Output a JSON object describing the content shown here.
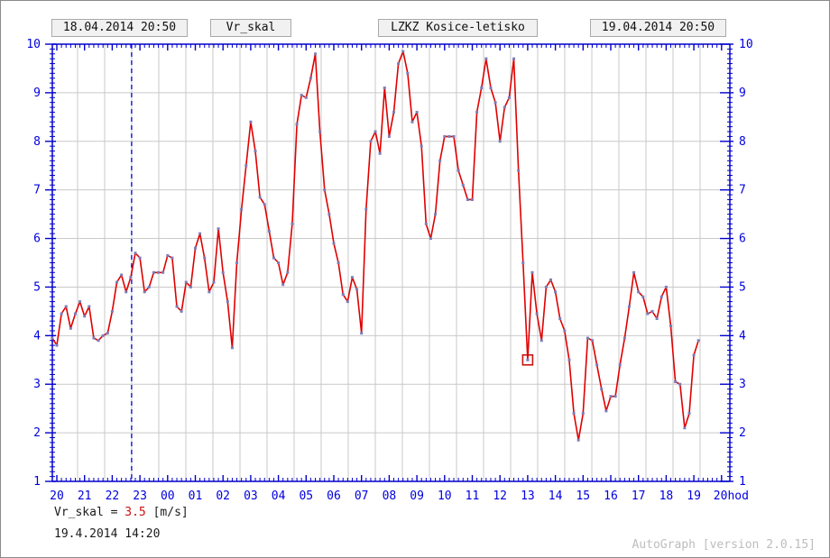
{
  "header": {
    "start_datetime": "18.04.2014 20:50",
    "series_name": "Vr_skal",
    "station_name": "LZKZ Kosice-letisko",
    "end_datetime": "19.04.2014 20:50"
  },
  "footer": {
    "readout_label": "Vr_skal =",
    "readout_value": "3.5",
    "readout_unit": "[m/s]",
    "readout_timestamp": "19.4.2014 14:20",
    "credit": "AutoGraph [version 2.0.15]"
  },
  "chart_data": {
    "type": "line",
    "title": "Vr_skal LZKZ Kosice-letisko",
    "xlabel": "hod",
    "ylabel": "m/s",
    "ylim": [
      1,
      10
    ],
    "grid": true,
    "legend_position": "none",
    "x_tick_labels": [
      "20",
      "21",
      "22",
      "23",
      "00",
      "01",
      "02",
      "03",
      "04",
      "05",
      "06",
      "07",
      "08",
      "09",
      "10",
      "11",
      "12",
      "13",
      "14",
      "15",
      "16",
      "17",
      "18",
      "19",
      "20hod"
    ],
    "y_tick_labels": [
      "1",
      "2",
      "3",
      "4",
      "5",
      "6",
      "7",
      "8",
      "9",
      "10"
    ],
    "dashed_time_marker_hour_offset": 2.7,
    "highlight_point": {
      "index": 103,
      "value": 3.5
    },
    "series": [
      {
        "name": "Vr_skal",
        "unit": "m/s",
        "start_time": "18.04.2014 19:50",
        "interval_minutes": 10,
        "color": "#e00000",
        "values": [
          3.95,
          3.8,
          4.45,
          4.6,
          4.15,
          4.45,
          4.7,
          4.4,
          4.6,
          3.95,
          3.9,
          4.0,
          4.05,
          4.5,
          5.1,
          5.25,
          4.9,
          5.2,
          5.7,
          5.6,
          4.9,
          5.0,
          5.3,
          5.3,
          5.3,
          5.65,
          5.6,
          4.6,
          4.5,
          5.1,
          5.0,
          5.8,
          6.1,
          5.6,
          4.9,
          5.1,
          6.2,
          5.3,
          4.7,
          3.75,
          5.5,
          6.6,
          7.5,
          8.4,
          7.8,
          6.85,
          6.7,
          6.15,
          5.6,
          5.5,
          5.05,
          5.3,
          6.3,
          8.35,
          8.95,
          8.9,
          9.3,
          9.8,
          8.2,
          7.0,
          6.5,
          5.9,
          5.5,
          4.85,
          4.7,
          5.2,
          4.95,
          4.05,
          6.6,
          8.0,
          8.2,
          7.75,
          9.1,
          8.1,
          8.6,
          9.6,
          9.85,
          9.4,
          8.4,
          8.6,
          7.9,
          6.3,
          6.0,
          6.5,
          7.6,
          8.1,
          8.1,
          8.1,
          7.4,
          7.1,
          6.8,
          6.8,
          8.6,
          9.1,
          9.7,
          9.1,
          8.8,
          8.0,
          8.7,
          8.9,
          9.7,
          7.4,
          5.5,
          3.5,
          5.3,
          4.45,
          3.9,
          5.0,
          5.15,
          4.9,
          4.35,
          4.1,
          3.5,
          2.4,
          1.85,
          2.4,
          3.95,
          3.9,
          3.4,
          2.9,
          2.45,
          2.75,
          2.75,
          3.4,
          3.95,
          4.6,
          5.3,
          4.9,
          4.8,
          4.45,
          4.5,
          4.35,
          4.8,
          5.0,
          4.2,
          3.05,
          3.0,
          2.1,
          2.4,
          3.6,
          3.9
        ]
      }
    ],
    "colors": {
      "axis": "#0000cc",
      "labels": "#0000e0",
      "grid": "#c9c9c9",
      "line": "#e00000",
      "marker": "#7d7db8",
      "highlight": "#cc1111"
    }
  }
}
